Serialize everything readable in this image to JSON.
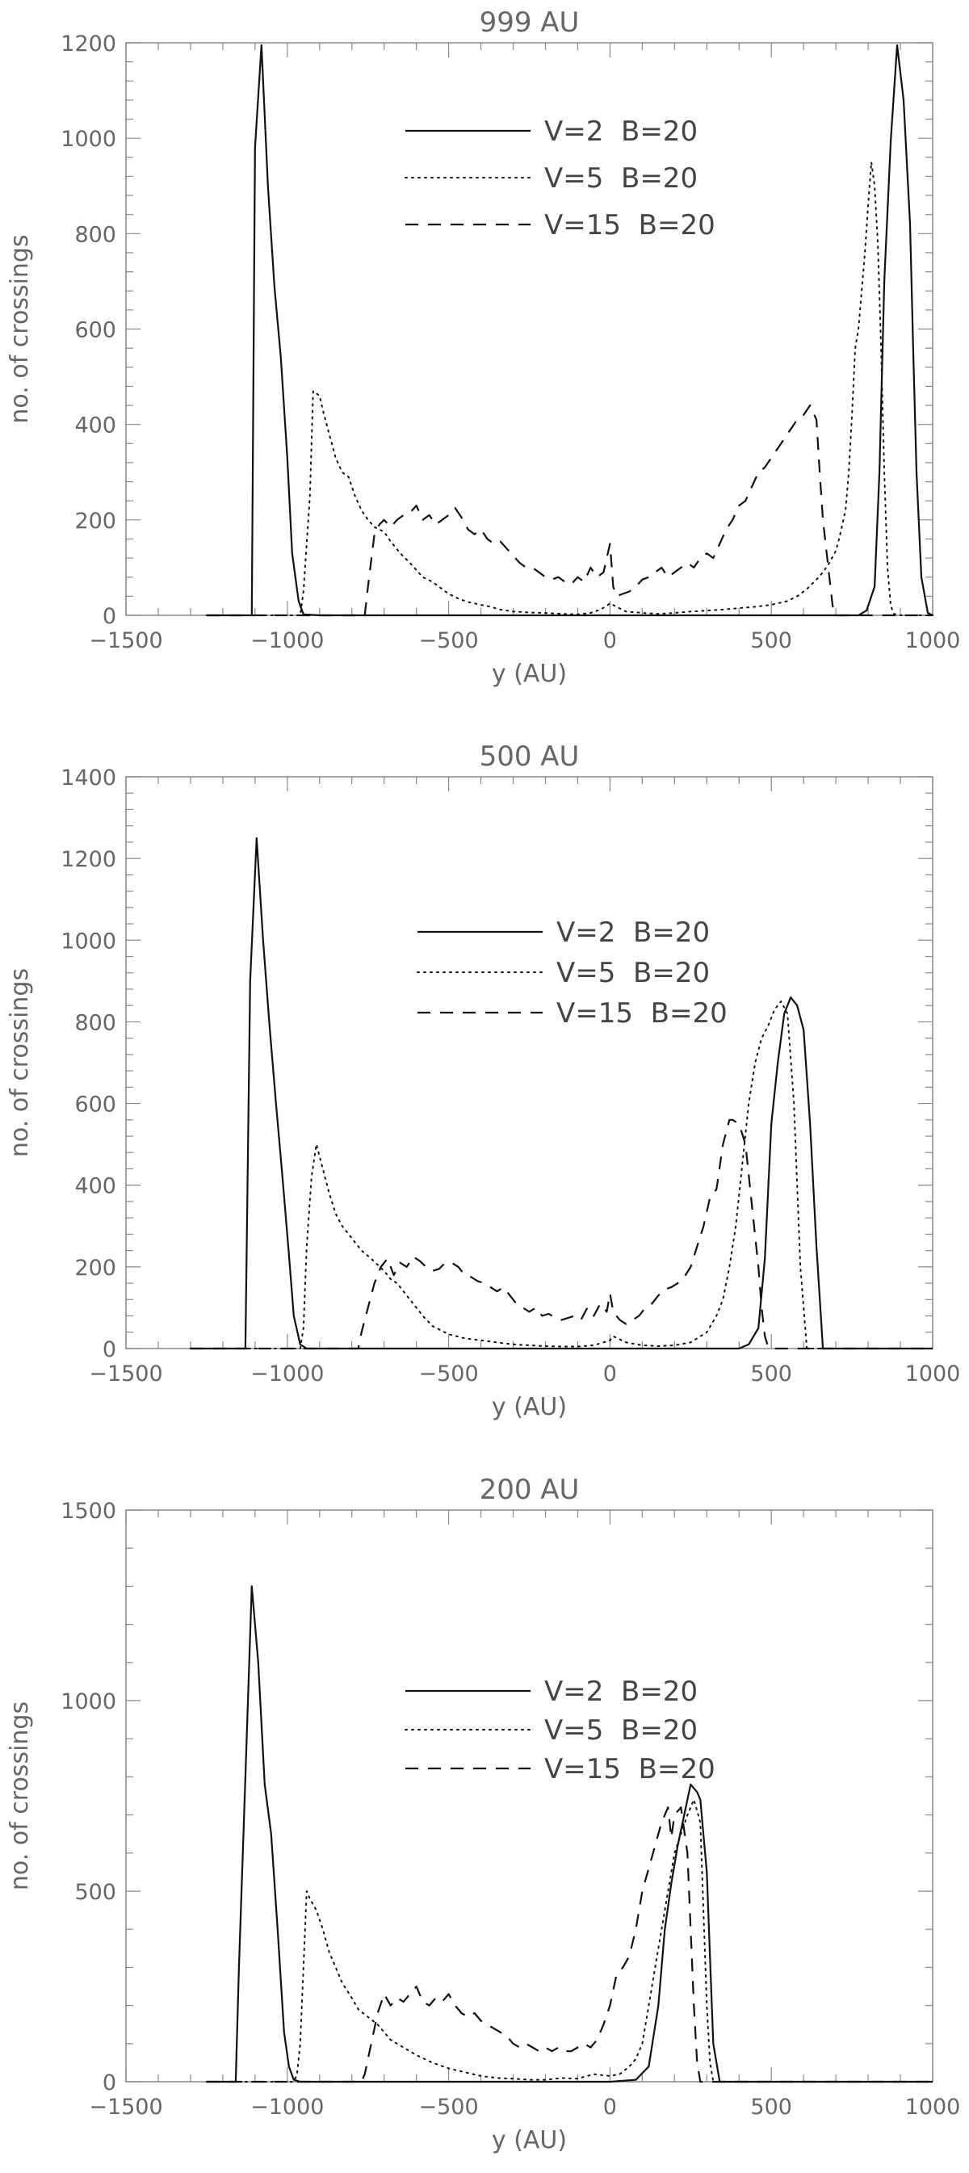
{
  "chart_data": [
    {
      "type": "line",
      "title": "999 AU",
      "xlabel": "y (AU)",
      "ylabel": "no. of crossings",
      "xlim": [
        -1500,
        1000
      ],
      "ylim": [
        0,
        1200
      ],
      "xticks": [
        -1500,
        -1000,
        -500,
        0,
        500,
        1000
      ],
      "yticks": [
        0,
        200,
        400,
        600,
        800,
        1000,
        1200
      ],
      "xtick_labels": [
        "−1500",
        "−1000",
        "−500",
        "0",
        "500",
        "1000"
      ],
      "ytick_labels": [
        "0",
        "200",
        "400",
        "600",
        "800",
        "1000",
        "1200"
      ],
      "grid": false,
      "legend_position": "top-center",
      "series": [
        {
          "name": "V=2  B=20",
          "style": "solid",
          "x": [
            -1250,
            -1110,
            -1100,
            -1080,
            -1060,
            -1040,
            -1020,
            -1000,
            -985,
            -965,
            -950,
            -900,
            0,
            700,
            770,
            795,
            820,
            835,
            850,
            870,
            890,
            910,
            930,
            940,
            950,
            965,
            985,
            1000
          ],
          "y": [
            0,
            0,
            980,
            1195,
            900,
            690,
            540,
            330,
            130,
            30,
            2,
            0,
            0,
            0,
            0,
            10,
            60,
            300,
            700,
            995,
            1195,
            1080,
            820,
            550,
            300,
            80,
            5,
            0
          ]
        },
        {
          "name": "V=5  B=20",
          "style": "dotted",
          "x": [
            -1250,
            -960,
            -950,
            -930,
            -920,
            -900,
            -890,
            -870,
            -850,
            -830,
            -810,
            -790,
            -770,
            -750,
            -730,
            -700,
            -680,
            -650,
            -620,
            -600,
            -580,
            -550,
            -520,
            -500,
            -470,
            -440,
            -400,
            -370,
            -340,
            -300,
            -250,
            -200,
            -150,
            -100,
            -60,
            -30,
            -10,
            0,
            20,
            50,
            100,
            150,
            200,
            250,
            300,
            350,
            400,
            450,
            500,
            550,
            580,
            610,
            640,
            660,
            680,
            700,
            710,
            730,
            740,
            750,
            760,
            770,
            780,
            790,
            800,
            810,
            820,
            830,
            840,
            850,
            860,
            870,
            880,
            900,
            1000
          ],
          "y": [
            0,
            0,
            50,
            250,
            470,
            460,
            430,
            380,
            330,
            300,
            290,
            250,
            220,
            200,
            185,
            175,
            155,
            130,
            110,
            95,
            80,
            70,
            55,
            45,
            35,
            28,
            22,
            18,
            12,
            8,
            6,
            5,
            3,
            2,
            5,
            12,
            20,
            25,
            18,
            8,
            5,
            3,
            5,
            8,
            10,
            12,
            15,
            18,
            22,
            30,
            40,
            55,
            75,
            90,
            110,
            135,
            160,
            220,
            300,
            420,
            560,
            600,
            680,
            760,
            860,
            950,
            900,
            780,
            560,
            300,
            100,
            20,
            3,
            0,
            0
          ]
        },
        {
          "name": "V=15  B=20",
          "style": "dashed",
          "x": [
            -1250,
            -760,
            -750,
            -730,
            -715,
            -700,
            -680,
            -660,
            -640,
            -620,
            -600,
            -580,
            -560,
            -540,
            -520,
            -500,
            -480,
            -460,
            -440,
            -420,
            -400,
            -380,
            -360,
            -340,
            -320,
            -300,
            -280,
            -260,
            -240,
            -220,
            -200,
            -180,
            -160,
            -140,
            -120,
            -100,
            -80,
            -60,
            -40,
            -20,
            0,
            10,
            20,
            40,
            60,
            80,
            100,
            120,
            140,
            160,
            180,
            200,
            220,
            240,
            260,
            280,
            300,
            320,
            340,
            360,
            380,
            400,
            420,
            440,
            460,
            480,
            500,
            520,
            540,
            560,
            580,
            600,
            620,
            640,
            650,
            660,
            680,
            690,
            700,
            720,
            1000
          ],
          "y": [
            0,
            0,
            60,
            170,
            190,
            200,
            185,
            200,
            210,
            215,
            230,
            200,
            210,
            190,
            200,
            210,
            225,
            205,
            180,
            170,
            180,
            160,
            150,
            155,
            140,
            125,
            110,
            100,
            100,
            90,
            80,
            75,
            80,
            70,
            65,
            80,
            70,
            100,
            80,
            90,
            150,
            60,
            40,
            45,
            50,
            60,
            75,
            80,
            90,
            100,
            80,
            90,
            100,
            110,
            100,
            120,
            130,
            120,
            150,
            180,
            200,
            230,
            240,
            270,
            300,
            310,
            330,
            350,
            370,
            390,
            410,
            420,
            440,
            410,
            300,
            200,
            80,
            20,
            0,
            0,
            0
          ]
        }
      ]
    },
    {
      "type": "line",
      "title": "500 AU",
      "xlabel": "y (AU)",
      "ylabel": "no. of crossings",
      "xlim": [
        -1500,
        1000
      ],
      "ylim": [
        0,
        1400
      ],
      "xticks": [
        -1500,
        -1000,
        -500,
        0,
        500,
        1000
      ],
      "yticks": [
        0,
        200,
        400,
        600,
        800,
        1000,
        1200,
        1400
      ],
      "xtick_labels": [
        "−1500",
        "−1000",
        "−500",
        "0",
        "500",
        "1000"
      ],
      "ytick_labels": [
        "0",
        "200",
        "400",
        "600",
        "800",
        "1000",
        "1200",
        "1400"
      ],
      "grid": false,
      "legend_position": "center",
      "series": [
        {
          "name": "V=2  B=20",
          "style": "solid",
          "x": [
            -1300,
            -1130,
            -1115,
            -1095,
            -1075,
            -1055,
            -1035,
            -1015,
            -995,
            -980,
            -960,
            -940,
            0,
            400,
            430,
            460,
            480,
            500,
            520,
            540,
            560,
            580,
            600,
            620,
            640,
            660,
            1000
          ],
          "y": [
            0,
            0,
            900,
            1250,
            1000,
            790,
            600,
            420,
            230,
            80,
            10,
            0,
            0,
            0,
            10,
            50,
            220,
            550,
            700,
            820,
            860,
            840,
            780,
            550,
            250,
            0,
            0
          ]
        },
        {
          "name": "V=5  B=20",
          "style": "dotted",
          "x": [
            -1300,
            -960,
            -950,
            -940,
            -925,
            -910,
            -890,
            -870,
            -850,
            -830,
            -810,
            -790,
            -770,
            -740,
            -700,
            -680,
            -660,
            -640,
            -620,
            -600,
            -580,
            -550,
            -500,
            -450,
            -400,
            -350,
            -300,
            -250,
            -200,
            -150,
            -100,
            -50,
            0,
            10,
            50,
            100,
            150,
            200,
            250,
            300,
            330,
            350,
            370,
            390,
            410,
            430,
            450,
            470,
            490,
            510,
            530,
            550,
            570,
            590,
            610,
            1000
          ],
          "y": [
            0,
            0,
            50,
            250,
            420,
            500,
            440,
            380,
            330,
            300,
            280,
            260,
            240,
            220,
            190,
            170,
            160,
            140,
            120,
            100,
            80,
            55,
            35,
            25,
            20,
            15,
            10,
            8,
            6,
            5,
            5,
            8,
            20,
            30,
            15,
            8,
            6,
            8,
            15,
            40,
            80,
            120,
            200,
            300,
            450,
            600,
            700,
            760,
            790,
            830,
            850,
            820,
            600,
            200,
            0,
            0
          ]
        },
        {
          "name": "V=15  B=20",
          "style": "dashed",
          "x": [
            -1300,
            -780,
            -770,
            -750,
            -730,
            -710,
            -690,
            -670,
            -650,
            -630,
            -610,
            -590,
            -570,
            -550,
            -530,
            -510,
            -490,
            -470,
            -450,
            -430,
            -410,
            -390,
            -370,
            -350,
            -330,
            -310,
            -290,
            -270,
            -250,
            -230,
            -210,
            -190,
            -170,
            -150,
            -130,
            -110,
            -90,
            -70,
            -50,
            -30,
            -10,
            0,
            10,
            30,
            50,
            70,
            90,
            110,
            130,
            150,
            170,
            190,
            210,
            230,
            250,
            270,
            290,
            310,
            330,
            350,
            370,
            380,
            400,
            420,
            440,
            460,
            470,
            480,
            490,
            500,
            1000
          ],
          "y": [
            0,
            0,
            40,
            100,
            160,
            200,
            220,
            180,
            210,
            200,
            225,
            215,
            200,
            190,
            195,
            210,
            210,
            200,
            180,
            175,
            165,
            160,
            150,
            140,
            150,
            130,
            110,
            100,
            90,
            100,
            80,
            85,
            75,
            70,
            75,
            80,
            70,
            100,
            80,
            110,
            90,
            135,
            90,
            70,
            60,
            70,
            80,
            100,
            110,
            130,
            145,
            150,
            160,
            175,
            200,
            250,
            300,
            370,
            390,
            500,
            560,
            560,
            550,
            500,
            350,
            200,
            100,
            30,
            5,
            0,
            0
          ]
        }
      ]
    },
    {
      "type": "line",
      "title": "200 AU",
      "xlabel": "y (AU)",
      "ylabel": "no. of crossings",
      "xlim": [
        -1500,
        1000
      ],
      "ylim": [
        0,
        1500
      ],
      "xticks": [
        -1500,
        -1000,
        -500,
        0,
        500,
        1000
      ],
      "yticks": [
        0,
        500,
        1000,
        1500
      ],
      "xtick_labels": [
        "−1500",
        "−1000",
        "−500",
        "0",
        "500",
        "1000"
      ],
      "ytick_labels": [
        "0",
        "500",
        "1000",
        "1500"
      ],
      "grid": false,
      "legend_position": "top-center",
      "series": [
        {
          "name": "V=2  B=20",
          "style": "solid",
          "x": [
            -1250,
            -1160,
            -1150,
            -1130,
            -1110,
            -1090,
            -1070,
            -1050,
            -1030,
            -1010,
            -995,
            -980,
            -960,
            0,
            80,
            120,
            150,
            170,
            190,
            210,
            230,
            250,
            270,
            280,
            300,
            320,
            340,
            1000
          ],
          "y": [
            0,
            0,
            300,
            800,
            1300,
            1100,
            780,
            650,
            400,
            130,
            40,
            5,
            0,
            0,
            5,
            40,
            200,
            400,
            520,
            620,
            700,
            780,
            760,
            740,
            550,
            100,
            0,
            0
          ]
        },
        {
          "name": "V=5  B=20",
          "style": "dotted",
          "x": [
            -1250,
            -980,
            -970,
            -960,
            -950,
            -940,
            -930,
            -910,
            -890,
            -870,
            -850,
            -830,
            -800,
            -780,
            -750,
            -720,
            -700,
            -680,
            -650,
            -620,
            -600,
            -550,
            -500,
            -450,
            -400,
            -350,
            -300,
            -250,
            -200,
            -150,
            -100,
            -50,
            0,
            30,
            60,
            80,
            100,
            120,
            140,
            160,
            180,
            200,
            220,
            240,
            260,
            280,
            300,
            310,
            320,
            1000
          ],
          "y": [
            0,
            0,
            20,
            100,
            300,
            500,
            480,
            450,
            400,
            340,
            300,
            260,
            220,
            190,
            170,
            150,
            130,
            110,
            95,
            80,
            70,
            50,
            35,
            25,
            15,
            10,
            8,
            5,
            5,
            10,
            8,
            20,
            15,
            20,
            40,
            60,
            100,
            200,
            300,
            400,
            500,
            600,
            650,
            700,
            740,
            680,
            200,
            50,
            0,
            0
          ]
        },
        {
          "name": "V=15  B=20",
          "style": "dashed",
          "x": [
            -1250,
            -770,
            -760,
            -740,
            -720,
            -700,
            -680,
            -660,
            -640,
            -620,
            -600,
            -580,
            -560,
            -540,
            -520,
            -500,
            -480,
            -460,
            -440,
            -420,
            -400,
            -380,
            -360,
            -340,
            -320,
            -300,
            -280,
            -260,
            -240,
            -220,
            -200,
            -180,
            -160,
            -140,
            -120,
            -100,
            -80,
            -60,
            -40,
            -20,
            0,
            20,
            40,
            60,
            80,
            100,
            120,
            140,
            160,
            170,
            180,
            190,
            200,
            220,
            240,
            250,
            260,
            270,
            280,
            1000
          ],
          "y": [
            0,
            0,
            20,
            100,
            180,
            230,
            200,
            220,
            210,
            230,
            250,
            210,
            200,
            220,
            210,
            230,
            200,
            180,
            170,
            180,
            160,
            150,
            140,
            130,
            120,
            100,
            90,
            100,
            90,
            80,
            90,
            80,
            90,
            80,
            80,
            90,
            100,
            90,
            110,
            150,
            200,
            280,
            300,
            330,
            400,
            500,
            560,
            620,
            680,
            700,
            720,
            640,
            700,
            720,
            600,
            400,
            200,
            50,
            0,
            0
          ]
        }
      ]
    }
  ]
}
